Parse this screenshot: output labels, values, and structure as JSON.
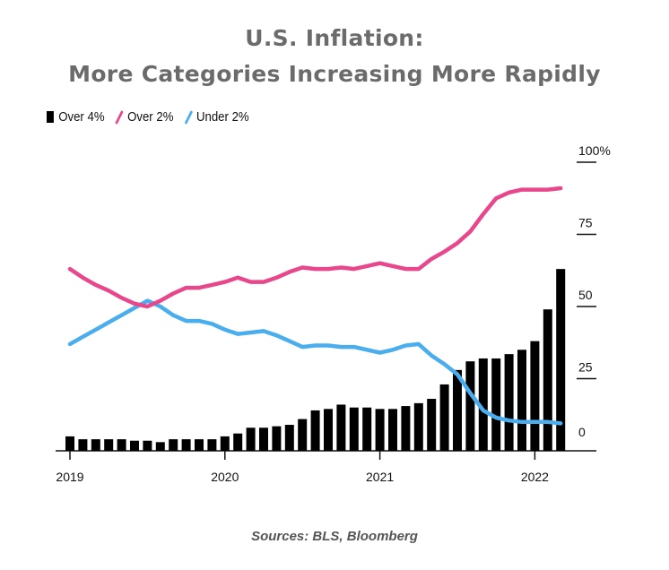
{
  "title_line1": "U.S. Inflation:",
  "title_line2": "More Categories Increasing More Rapidly",
  "source": "Sources: BLS, Bloomberg",
  "colors": {
    "over4": "#000000",
    "over2": "#e8478b",
    "under2": "#4aaeee"
  },
  "chart_data": {
    "type": "bar",
    "legend": [
      "Over 4%",
      "Over 2%",
      "Under 2%"
    ],
    "legend_position": "top-left",
    "x_tick_labels": [
      "2019",
      "2020",
      "2021",
      "2022"
    ],
    "y_tick_labels": [
      "0",
      "25",
      "50",
      "75",
      "100%"
    ],
    "ylim": [
      0,
      100
    ],
    "y_axis_side": "right",
    "x_start": "2019-01",
    "series": [
      {
        "name": "Over 4%",
        "type": "bar",
        "values": [
          5,
          4,
          4,
          4,
          4,
          3.5,
          3.5,
          3,
          4,
          4,
          4,
          4,
          5,
          6,
          8,
          8,
          8.5,
          9,
          11,
          14,
          14.5,
          16,
          15,
          15,
          14.5,
          14.5,
          15.5,
          16.5,
          18,
          23,
          28,
          31,
          32,
          32,
          33.5,
          35,
          38,
          49,
          63
        ]
      },
      {
        "name": "Over 2%",
        "type": "line",
        "values": [
          63,
          60,
          57.5,
          55.5,
          53,
          51,
          50,
          52,
          54.5,
          56.5,
          56.5,
          57.5,
          58.5,
          60,
          58.5,
          58.5,
          60,
          62,
          63.5,
          63,
          63,
          63.5,
          63,
          64,
          65,
          64,
          63,
          63,
          66.5,
          69,
          72,
          76,
          82,
          87.5,
          89.5,
          90.5,
          90.5,
          90.5,
          91
        ]
      },
      {
        "name": "Under 2%",
        "type": "line",
        "values": [
          37,
          39.5,
          42,
          44.5,
          47,
          49.5,
          52,
          50,
          47,
          45,
          45,
          44,
          42,
          40.5,
          41,
          41.5,
          40,
          38,
          36,
          36.5,
          36.5,
          36,
          36,
          35,
          34,
          35,
          36.5,
          37,
          33,
          30,
          26.5,
          20,
          14,
          11.5,
          10.5,
          10,
          10,
          10,
          9.5
        ]
      }
    ]
  }
}
